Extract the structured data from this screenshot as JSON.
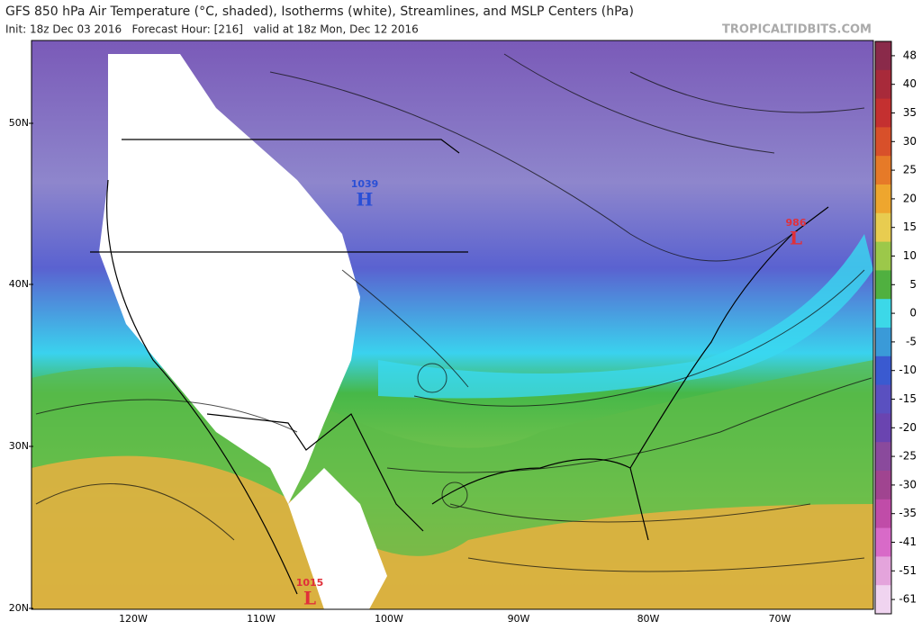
{
  "header": {
    "title": "GFS 850 hPa Air Temperature (°C, shaded), Isotherms (white), Streamlines, and MSLP Centers (hPa)",
    "subtitle": "Init: 18z Dec 03 2016   Forecast Hour: [216]   valid at 18z Mon, Dec 12 2016",
    "watermark": "TROPICALTIDBITS.COM"
  },
  "map": {
    "lat_labels": [
      "50N",
      "40N",
      "30N",
      "20N"
    ],
    "lon_labels": [
      "120W",
      "110W",
      "100W",
      "90W",
      "80W",
      "70W"
    ],
    "pressure_centers": [
      {
        "value": 1039,
        "letter": "H",
        "color": "#2a4fd6"
      },
      {
        "value": 986,
        "letter": "L",
        "color": "#e0303a"
      },
      {
        "value": 1015,
        "letter": "L",
        "color": "#e0303a"
      }
    ]
  },
  "colorbar": {
    "ticks": [
      48,
      40,
      35,
      30,
      25,
      20,
      15,
      10,
      5,
      0,
      -5,
      -10,
      -15,
      -20,
      -25,
      -30,
      -35,
      -41,
      -51,
      -61
    ],
    "colors": [
      "#8a2a4a",
      "#a82a3a",
      "#c43030",
      "#d8502a",
      "#e67a28",
      "#eea62e",
      "#e8cc50",
      "#9cc84a",
      "#50b040",
      "#3cd8e8",
      "#3a9ad8",
      "#3a5ad0",
      "#5a50c0",
      "#6a44b0",
      "#8a4a9c",
      "#a04490",
      "#c04ca8",
      "#d86ac8",
      "#e4a4dc",
      "#f0d4f0"
    ]
  }
}
